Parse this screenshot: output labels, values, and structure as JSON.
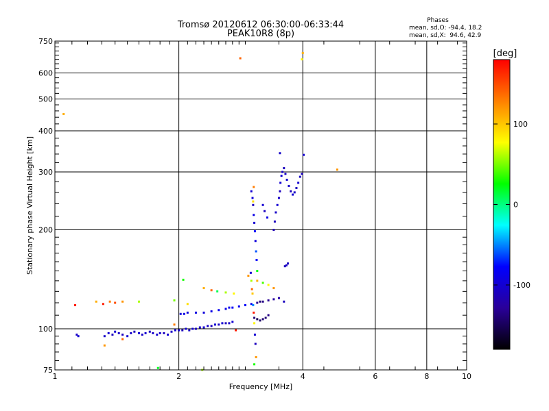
{
  "chart_data": {
    "type": "scatter",
    "title": "Tromsø 20120612 06:30:00-06:33:44",
    "subtitle": "PEAK10R8 (8p)",
    "xlabel": "Frequency [MHz]",
    "ylabel": "Stationary phase Virtual Height [km]",
    "x_scale": "log",
    "y_scale": "log",
    "xlim": [
      1,
      10
    ],
    "ylim": [
      75,
      750
    ],
    "x_ticks": [
      1,
      2,
      4,
      6,
      8,
      10
    ],
    "y_ticks": [
      75,
      100,
      200,
      300,
      400,
      500,
      600,
      750
    ],
    "grid": true,
    "phase_stats": {
      "header": "Phases",
      "line_o": "mean, sd,O: -94.4, 18.2",
      "line_x": "mean, sd,X:  94.6, 42.9"
    },
    "colorbar": {
      "label": "[deg]",
      "range": [
        -180,
        180
      ],
      "ticks": [
        100,
        0,
        -100
      ],
      "colors": [
        "#ff0000",
        "#ff8000",
        "#ffff00",
        "#00ff00",
        "#00ffff",
        "#0000ff",
        "#2a0099",
        "#000000"
      ]
    },
    "series": [
      {
        "points": [
          [
            1.13,
            96,
            -105
          ],
          [
            1.14,
            95,
            -100
          ],
          [
            1.32,
            95,
            -105
          ],
          [
            1.35,
            97,
            -100
          ],
          [
            1.38,
            96,
            -110
          ],
          [
            1.4,
            98,
            -100
          ],
          [
            1.43,
            97,
            -105
          ],
          [
            1.46,
            96,
            -110
          ],
          [
            1.5,
            95,
            -100
          ],
          [
            1.53,
            97,
            -105
          ],
          [
            1.56,
            98,
            -110
          ],
          [
            1.6,
            97,
            -100
          ],
          [
            1.63,
            96,
            -105
          ],
          [
            1.66,
            97,
            -100
          ],
          [
            1.7,
            98,
            -110
          ],
          [
            1.73,
            97,
            -105
          ],
          [
            1.77,
            96,
            -100
          ],
          [
            1.8,
            97,
            -105
          ],
          [
            1.84,
            97,
            -110
          ],
          [
            1.88,
            96,
            -100
          ],
          [
            1.92,
            98,
            -105
          ],
          [
            1.96,
            99,
            -100
          ],
          [
            2.0,
            99,
            -105
          ],
          [
            2.04,
            99,
            -110
          ],
          [
            2.08,
            100,
            -100
          ],
          [
            2.12,
            99,
            -105
          ],
          [
            2.16,
            100,
            -100
          ],
          [
            2.2,
            100,
            -110
          ],
          [
            2.25,
            101,
            -105
          ],
          [
            2.3,
            101,
            -100
          ],
          [
            2.35,
            102,
            -105
          ],
          [
            2.4,
            102,
            -110
          ],
          [
            2.45,
            103,
            -100
          ],
          [
            2.5,
            103,
            -105
          ],
          [
            2.55,
            104,
            -100
          ],
          [
            2.6,
            104,
            -110
          ],
          [
            2.65,
            104,
            -105
          ],
          [
            2.7,
            105,
            -100
          ],
          [
            2.02,
            111,
            -95
          ],
          [
            2.06,
            111,
            -90
          ],
          [
            2.1,
            112,
            -95
          ],
          [
            2.2,
            112,
            -92
          ],
          [
            2.3,
            112,
            -95
          ],
          [
            2.4,
            113,
            -90
          ],
          [
            2.5,
            114,
            -85
          ],
          [
            2.6,
            115,
            -90
          ],
          [
            2.65,
            116,
            -85
          ],
          [
            2.7,
            116,
            -80
          ],
          [
            2.8,
            117,
            -85
          ],
          [
            2.9,
            118,
            -80
          ],
          [
            3.0,
            119,
            -82
          ],
          [
            3.1,
            120,
            -130
          ],
          [
            3.15,
            121,
            -140
          ],
          [
            3.2,
            121,
            -135
          ],
          [
            3.3,
            122,
            -130
          ],
          [
            3.4,
            123,
            -125
          ],
          [
            3.5,
            124,
            -120
          ],
          [
            3.6,
            121,
            -110
          ],
          [
            3.05,
            108,
            -140
          ],
          [
            3.1,
            107,
            -150
          ],
          [
            3.15,
            106,
            -145
          ],
          [
            3.2,
            107,
            -140
          ],
          [
            3.25,
            108,
            -140
          ],
          [
            3.3,
            110,
            -135
          ],
          [
            3.62,
            155,
            -110
          ],
          [
            3.65,
            156,
            -105
          ],
          [
            3.68,
            158,
            -110
          ],
          [
            3.0,
            262,
            -100
          ],
          [
            3.02,
            250,
            -95
          ],
          [
            3.03,
            238,
            -110
          ],
          [
            3.04,
            222,
            -90
          ],
          [
            3.05,
            210,
            -100
          ],
          [
            3.06,
            198,
            -80
          ],
          [
            3.07,
            185,
            -95
          ],
          [
            3.08,
            172,
            -60
          ],
          [
            3.09,
            162,
            -80
          ],
          [
            3.1,
            150,
            20
          ],
          [
            2.99,
            148,
            -100
          ],
          [
            3.0,
            140,
            60
          ],
          [
            3.01,
            132,
            140
          ],
          [
            3.02,
            128,
            100
          ],
          [
            3.03,
            118,
            -50
          ],
          [
            3.04,
            112,
            170
          ],
          [
            3.05,
            104,
            80
          ],
          [
            3.06,
            96,
            -100
          ],
          [
            3.07,
            90,
            -110
          ],
          [
            3.08,
            82,
            120
          ],
          [
            3.05,
            78,
            30
          ],
          [
            3.04,
            270,
            130
          ],
          [
            3.03,
            244,
            90
          ],
          [
            3.2,
            238,
            -100
          ],
          [
            3.23,
            228,
            -110
          ],
          [
            3.28,
            218,
            -90
          ],
          [
            3.4,
            200,
            -115
          ],
          [
            3.42,
            212,
            -110
          ],
          [
            3.44,
            226,
            -105
          ],
          [
            3.47,
            238,
            -100
          ],
          [
            3.5,
            250,
            -105
          ],
          [
            3.52,
            262,
            -110
          ],
          [
            3.53,
            278,
            -100
          ],
          [
            3.55,
            292,
            -100
          ],
          [
            3.57,
            300,
            -105
          ],
          [
            3.6,
            308,
            -110
          ],
          [
            3.63,
            296,
            -105
          ],
          [
            3.66,
            284,
            -100
          ],
          [
            3.7,
            272,
            -105
          ],
          [
            3.74,
            262,
            -110
          ],
          [
            3.78,
            256,
            -100
          ],
          [
            3.82,
            260,
            -105
          ],
          [
            3.86,
            268,
            -110
          ],
          [
            3.9,
            278,
            -100
          ],
          [
            3.94,
            290,
            -105
          ],
          [
            3.98,
            296,
            -110
          ],
          [
            4.02,
            338,
            -100
          ],
          [
            3.52,
            342,
            -105
          ],
          [
            2.82,
            665,
            140
          ],
          [
            4.0,
            690,
            110
          ],
          [
            3.98,
            660,
            80
          ],
          [
            1.05,
            450,
            110
          ],
          [
            1.12,
            118,
            170
          ],
          [
            1.26,
            121,
            110
          ],
          [
            1.31,
            119,
            170
          ],
          [
            1.36,
            121,
            130
          ],
          [
            1.4,
            120,
            150
          ],
          [
            1.46,
            121,
            120
          ],
          [
            1.6,
            121,
            60
          ],
          [
            1.95,
            122,
            50
          ],
          [
            2.05,
            141,
            30
          ],
          [
            2.1,
            119,
            90
          ],
          [
            2.3,
            133,
            110
          ],
          [
            2.4,
            131,
            140
          ],
          [
            2.48,
            130,
            10
          ],
          [
            2.6,
            129,
            60
          ],
          [
            2.72,
            128,
            80
          ],
          [
            2.95,
            145,
            120
          ],
          [
            3.1,
            140,
            110
          ],
          [
            3.2,
            138,
            40
          ],
          [
            3.3,
            136,
            80
          ],
          [
            3.4,
            133,
            120
          ],
          [
            2.28,
            75,
            60
          ],
          [
            1.78,
            76,
            20
          ],
          [
            4.85,
            305,
            120
          ],
          [
            1.32,
            89,
            120
          ],
          [
            1.46,
            93,
            140
          ],
          [
            1.95,
            103,
            130
          ],
          [
            2.75,
            99,
            170
          ]
        ]
      }
    ]
  }
}
